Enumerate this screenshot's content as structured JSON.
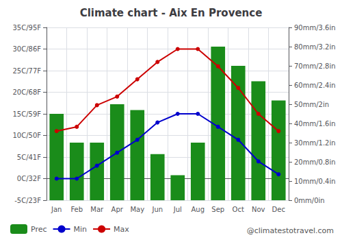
{
  "chart_data": {
    "type": "bar",
    "title": "Climate chart - Aix En Provence",
    "categories": [
      "Jan",
      "Feb",
      "Mar",
      "Apr",
      "May",
      "Jun",
      "Jul",
      "Aug",
      "Sep",
      "Oct",
      "Nov",
      "Dec"
    ],
    "series": [
      {
        "name": "Prec",
        "type": "bar",
        "axis": "y2",
        "color": "#1a8c1a",
        "values": [
          45,
          30,
          30,
          50,
          47,
          24,
          13,
          30,
          80,
          70,
          62,
          52
        ]
      },
      {
        "name": "Min",
        "type": "line",
        "color": "#0000cc",
        "marker": "circle",
        "line_style": "solid",
        "values": [
          0,
          0,
          3,
          6,
          9,
          13,
          15,
          15,
          12,
          9,
          4,
          1
        ]
      },
      {
        "name": "Max",
        "type": "line",
        "color": "#cc0000",
        "marker": "circle",
        "line_style": "solid",
        "values": [
          11,
          12,
          17,
          19,
          23,
          27,
          30,
          30,
          26,
          21,
          15,
          11
        ]
      }
    ],
    "ylim": [
      -5,
      35
    ],
    "yticks": [
      {
        "value": -5,
        "label": "-5C/23F"
      },
      {
        "value": 0,
        "label": "0C/32F"
      },
      {
        "value": 5,
        "label": "5C/41F"
      },
      {
        "value": 10,
        "label": "10C/50F"
      },
      {
        "value": 15,
        "label": "15C/59F"
      },
      {
        "value": 20,
        "label": "20C/68F"
      },
      {
        "value": 25,
        "label": "25C/77F"
      },
      {
        "value": 30,
        "label": "30C/86F"
      },
      {
        "value": 35,
        "label": "35C/95F"
      }
    ],
    "y2lim": [
      0,
      90
    ],
    "y2ticks": [
      {
        "value": 0,
        "label": "0mm/0in"
      },
      {
        "value": 10,
        "label": "10mm/0.4in"
      },
      {
        "value": 20,
        "label": "20mm/0.8in"
      },
      {
        "value": 30,
        "label": "30mm/1.2in"
      },
      {
        "value": 40,
        "label": "40mm/1.6in"
      },
      {
        "value": 50,
        "label": "50mm/2in"
      },
      {
        "value": 60,
        "label": "60mm/2.4in"
      },
      {
        "value": 70,
        "label": "70mm/2.8in"
      },
      {
        "value": 80,
        "label": "80mm/3.2in"
      },
      {
        "value": 90,
        "label": "90mm/3.6in"
      }
    ],
    "grid": true,
    "legend": "bottom-left",
    "annotations": [
      {
        "text": "@climatestotravel.com"
      }
    ]
  }
}
